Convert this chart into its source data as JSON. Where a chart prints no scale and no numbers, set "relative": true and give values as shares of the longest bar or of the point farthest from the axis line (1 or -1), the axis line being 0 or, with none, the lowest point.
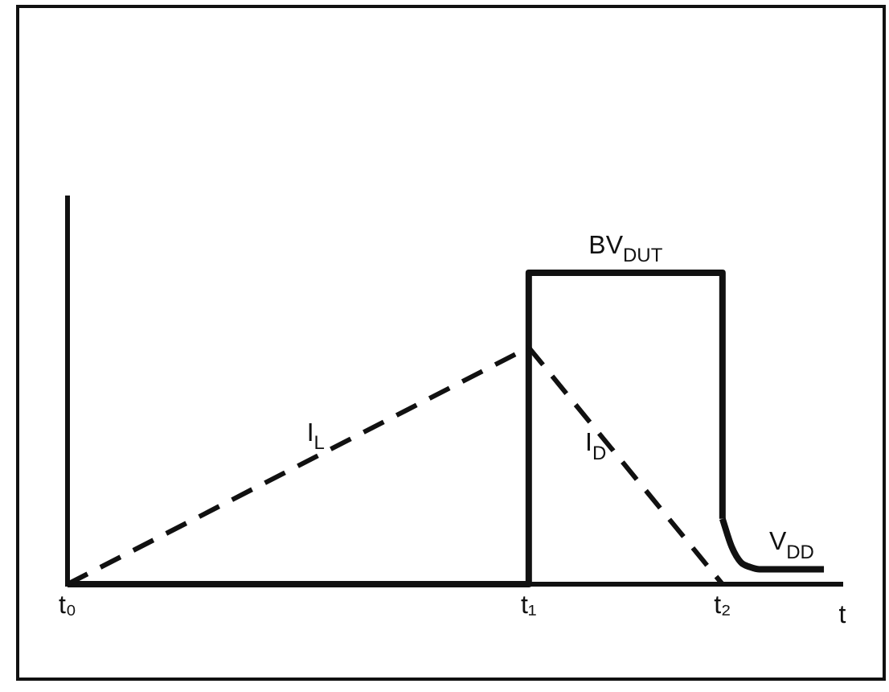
{
  "chart_data": {
    "type": "line",
    "relative": true,
    "xlabel": "t",
    "marker": "none",
    "categories": [
      "t₀",
      null,
      null,
      null,
      null,
      null,
      null,
      null,
      null,
      null,
      null,
      null,
      null,
      null,
      null,
      null,
      null,
      null,
      null,
      null,
      null,
      null,
      null,
      null,
      null,
      null,
      null,
      null,
      null,
      null,
      null,
      null,
      null,
      null,
      null,
      null,
      null,
      null,
      null,
      null,
      null,
      null,
      null,
      null,
      null,
      null,
      null,
      null,
      null,
      null,
      "t₁",
      null,
      null,
      null,
      null,
      null,
      null,
      null,
      null,
      null,
      null,
      null,
      null,
      null,
      null,
      null,
      null,
      null,
      null,
      null,
      null,
      "t₂",
      null,
      null,
      null,
      null,
      null,
      null,
      null,
      null,
      null,
      null,
      null,
      null,
      null
    ],
    "series": [
      {
        "name": "I$_{L}$",
        "color": "#111111",
        "line_style": "dashed",
        "values": [
          0,
          null,
          null,
          null,
          null,
          null,
          null,
          null,
          null,
          null,
          null,
          null,
          null,
          null,
          null,
          null,
          null,
          null,
          null,
          null,
          null,
          null,
          null,
          null,
          null,
          null,
          null,
          null,
          null,
          null,
          null,
          null,
          null,
          null,
          null,
          null,
          null,
          null,
          null,
          null,
          null,
          null,
          null,
          null,
          null,
          null,
          null,
          null,
          null,
          null,
          0.76,
          null,
          null,
          null,
          null,
          null,
          null,
          null,
          null,
          null,
          null,
          null,
          null,
          null,
          null,
          null,
          null,
          null,
          null,
          null,
          null,
          null,
          null,
          null,
          null,
          null,
          null,
          null,
          null,
          null,
          null,
          null,
          null,
          null,
          null
        ]
      },
      {
        "name": "I$_{D}$",
        "color": "#111111",
        "line_style": "dashed",
        "values": [
          null,
          null,
          null,
          null,
          null,
          null,
          null,
          null,
          null,
          null,
          null,
          null,
          null,
          null,
          null,
          null,
          null,
          null,
          null,
          null,
          null,
          null,
          null,
          null,
          null,
          null,
          null,
          null,
          null,
          null,
          null,
          null,
          null,
          null,
          null,
          null,
          null,
          null,
          null,
          null,
          null,
          null,
          null,
          null,
          null,
          null,
          null,
          null,
          null,
          null,
          0.76,
          null,
          null,
          null,
          null,
          null,
          null,
          null,
          null,
          null,
          null,
          null,
          null,
          null,
          null,
          null,
          null,
          null,
          null,
          null,
          null,
          0,
          null,
          null,
          null,
          null,
          null,
          null,
          null,
          null,
          null,
          null,
          null,
          null,
          null
        ]
      },
      {
        "type": "step",
        "color": "#111111",
        "line_style": "solid",
        "values": [
          0,
          null,
          null,
          null,
          null,
          null,
          null,
          null,
          null,
          null,
          null,
          null,
          null,
          null,
          null,
          null,
          null,
          null,
          null,
          null,
          null,
          null,
          null,
          null,
          null,
          null,
          null,
          null,
          null,
          null,
          null,
          null,
          null,
          null,
          null,
          null,
          null,
          null,
          null,
          null,
          null,
          null,
          null,
          null,
          null,
          null,
          null,
          null,
          null,
          null,
          1,
          null,
          null,
          null,
          null,
          null,
          null,
          null,
          null,
          null,
          null,
          null,
          null,
          null,
          null,
          null,
          null,
          null,
          null,
          null,
          null,
          0.21,
          null,
          null,
          null,
          null,
          null,
          null,
          null,
          null,
          null,
          null,
          null,
          null,
          null
        ]
      },
      {
        "color": "#111111",
        "line_style": "solid",
        "values": [
          null,
          null,
          null,
          null,
          null,
          null,
          null,
          null,
          null,
          null,
          null,
          null,
          null,
          null,
          null,
          null,
          null,
          null,
          null,
          null,
          null,
          null,
          null,
          null,
          null,
          null,
          null,
          null,
          null,
          null,
          null,
          null,
          null,
          null,
          null,
          null,
          null,
          null,
          null,
          null,
          null,
          null,
          null,
          null,
          null,
          null,
          null,
          null,
          null,
          null,
          null,
          null,
          null,
          null,
          null,
          null,
          null,
          null,
          null,
          null,
          null,
          null,
          null,
          null,
          null,
          null,
          null,
          null,
          null,
          null,
          null,
          0.21,
          0.12,
          0.07,
          0.055,
          0.048,
          null,
          null,
          null,
          null,
          null,
          null,
          0.048,
          null,
          null
        ]
      }
    ],
    "annotations": [
      {
        "text": "BV$_{DUT}$",
        "y": 1
      },
      {
        "text": "V$_{DD}$",
        "y": 0.048
      }
    ]
  }
}
